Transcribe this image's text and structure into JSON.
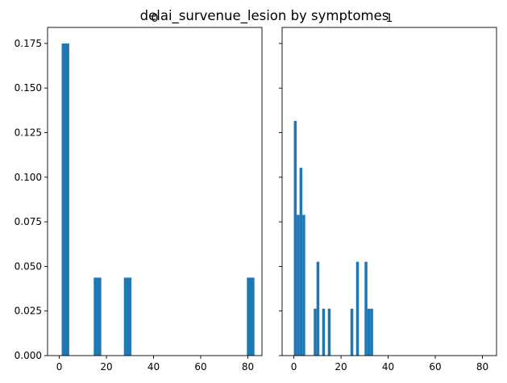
{
  "title": "delai_survenue_lesion by symptomes",
  "colors": {
    "bar": "#1f77b4",
    "axis": "#000000"
  },
  "chart_data": [
    {
      "type": "bar",
      "panel_title": "0",
      "xlim": [
        -5,
        86
      ],
      "ylim": [
        0,
        0.184
      ],
      "xticks": [
        0,
        20,
        40,
        60,
        80
      ],
      "yticks": [
        0.0,
        0.025,
        0.05,
        0.075,
        0.1,
        0.125,
        0.15,
        0.175
      ],
      "ytick_labels": [
        "0.000",
        "0.025",
        "0.050",
        "0.075",
        "0.100",
        "0.125",
        "0.150",
        "0.175"
      ],
      "show_yticklabels": true,
      "bins": [
        {
          "x0": 1.0,
          "x1": 4.2,
          "density": 0.175
        },
        {
          "x0": 14.6,
          "x1": 17.8,
          "density": 0.0437
        },
        {
          "x0": 27.4,
          "x1": 30.6,
          "density": 0.0437
        },
        {
          "x0": 79.6,
          "x1": 82.8,
          "density": 0.0437
        }
      ]
    },
    {
      "type": "bar",
      "panel_title": "1",
      "xlim": [
        -5,
        86
      ],
      "ylim": [
        0,
        0.184
      ],
      "xticks": [
        0,
        20,
        40,
        60,
        80
      ],
      "yticks": [
        0.0,
        0.025,
        0.05,
        0.075,
        0.1,
        0.125,
        0.15,
        0.175
      ],
      "show_yticklabels": false,
      "bins": [
        {
          "x0": 0.0,
          "x1": 1.2,
          "density": 0.1316
        },
        {
          "x0": 1.2,
          "x1": 2.4,
          "density": 0.0789
        },
        {
          "x0": 2.4,
          "x1": 3.6,
          "density": 0.1053
        },
        {
          "x0": 3.6,
          "x1": 4.8,
          "density": 0.0789
        },
        {
          "x0": 8.4,
          "x1": 9.6,
          "density": 0.0263
        },
        {
          "x0": 9.6,
          "x1": 10.8,
          "density": 0.0526
        },
        {
          "x0": 12.0,
          "x1": 13.2,
          "density": 0.0263
        },
        {
          "x0": 14.4,
          "x1": 15.6,
          "density": 0.0263
        },
        {
          "x0": 24.0,
          "x1": 25.2,
          "density": 0.0263
        },
        {
          "x0": 26.4,
          "x1": 27.6,
          "density": 0.0526
        },
        {
          "x0": 30.0,
          "x1": 31.2,
          "density": 0.0526
        },
        {
          "x0": 31.2,
          "x1": 32.4,
          "density": 0.0263
        },
        {
          "x0": 32.4,
          "x1": 33.6,
          "density": 0.0263
        }
      ]
    }
  ]
}
